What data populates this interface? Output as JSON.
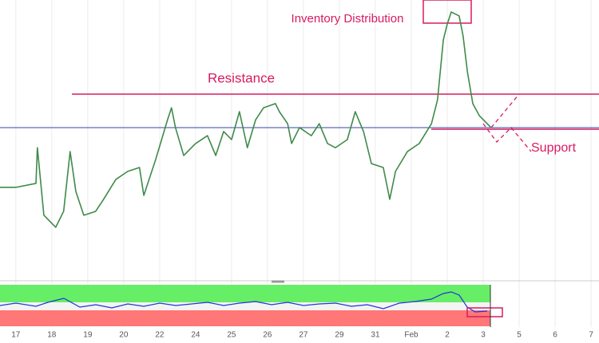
{
  "chart_data": {
    "type": "line",
    "annotations": {
      "top": "Inventory Distribution",
      "resistance": "Resistance",
      "support": "Support"
    },
    "x": [
      -0.44,
      0,
      0.56,
      0.6,
      0.78,
      1.11,
      1.33,
      1.51,
      1.67,
      1.89,
      2.22,
      2.44,
      2.78,
      3.11,
      3.44,
      3.56,
      3.89,
      4.22,
      4.33,
      4.44,
      4.67,
      5,
      5.33,
      5.56,
      5.78,
      6,
      6.22,
      6.44,
      6.67,
      6.89,
      7.22,
      7.33,
      7.56,
      7.67,
      7.89,
      8.22,
      8.44,
      8.67,
      8.89,
      9.22,
      9.44,
      9.67,
      9.89,
      10.22,
      10.4,
      10.56,
      10.89,
      11.22,
      11.56,
      11.73,
      11.89,
      12,
      12.11,
      12.33,
      12.44,
      12.56,
      12.71,
      12.89,
      13.11,
      13.22
    ],
    "values": [
      32.9,
      32.9,
      34.3,
      47.1,
      22.9,
      18.6,
      24.3,
      45.7,
      31.4,
      22.9,
      24.3,
      28.6,
      35.7,
      38.6,
      40,
      30,
      42.9,
      57.1,
      61.4,
      54.3,
      44.3,
      48.6,
      51.4,
      44.3,
      52.9,
      50,
      60,
      47.1,
      57.1,
      61.4,
      62.9,
      60,
      55.7,
      48.6,
      54.3,
      51.4,
      55.7,
      48.6,
      47.1,
      50,
      60,
      52.9,
      41.4,
      40,
      28.6,
      38.6,
      45.7,
      48.6,
      55.7,
      64.3,
      85.7,
      91.4,
      95.7,
      94.3,
      87.1,
      74.3,
      62.9,
      58.6,
      55.7,
      54.3
    ],
    "color": "#3f8a4a",
    "resistance_level": 66.3,
    "support_level": 54.3,
    "xlim": [
      -0.44,
      16.22
    ],
    "ylim": [
      0,
      100
    ],
    "xticks": [
      {
        "value": 0,
        "label": "17"
      },
      {
        "value": 1,
        "label": "18"
      },
      {
        "value": 2,
        "label": "19"
      },
      {
        "value": 3,
        "label": "20"
      },
      {
        "value": 4,
        "label": "22"
      },
      {
        "value": 5,
        "label": "24"
      },
      {
        "value": 6,
        "label": "25"
      },
      {
        "value": 7,
        "label": "26"
      },
      {
        "value": 8,
        "label": "27"
      },
      {
        "value": 9,
        "label": "29"
      },
      {
        "value": 10,
        "label": "31"
      },
      {
        "value": 11,
        "label": "Feb"
      },
      {
        "value": 12,
        "label": "2"
      },
      {
        "value": 13,
        "label": "3"
      },
      {
        "value": 14,
        "label": "5"
      },
      {
        "value": 15,
        "label": "6"
      },
      {
        "value": 16,
        "label": "7"
      }
    ],
    "grid": true
  }
}
